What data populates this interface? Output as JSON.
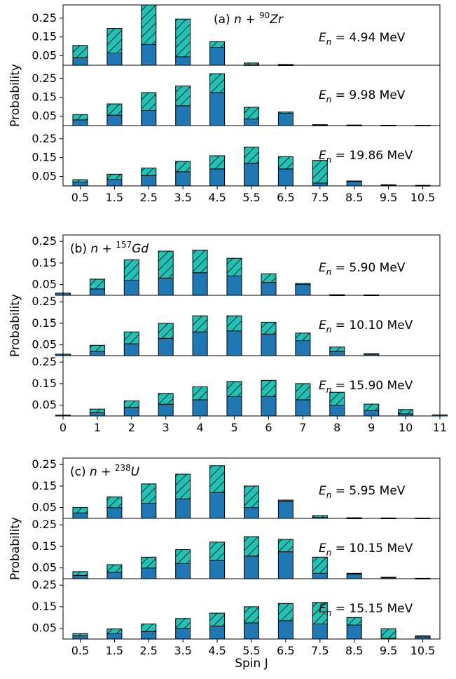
{
  "colors": {
    "solid": "#1f77b4",
    "hatch_bg": "#20c2b6",
    "edge": "#000000"
  },
  "chart_data": [
    {
      "type": "bar",
      "stacked": true,
      "title": "",
      "panel_label": "(a) n + ⁹⁰Zr",
      "ylabel": "Probability",
      "xlabel": "",
      "x_ticks": [
        "0.5",
        "1.5",
        "2.5",
        "3.5",
        "4.5",
        "5.5",
        "6.5",
        "7.5",
        "8.5",
        "9.5",
        "10.5"
      ],
      "xlim": [
        0,
        11
      ],
      "y_ticks": [
        "0.25",
        "0.15",
        "0.05"
      ],
      "subplots": [
        {
          "energy": "Eₙ = 4.94 MeV",
          "ylim": [
            0,
            0.32
          ],
          "x": [
            0.5,
            1.5,
            2.5,
            3.5,
            4.5,
            5.5,
            6.5,
            7.5,
            8.5,
            9.5,
            10.5
          ],
          "series": [
            {
              "style": "solid",
              "values": [
                0.04,
                0.065,
                0.11,
                0.045,
                0.095,
                0.002,
                0.001,
                0,
                0,
                0,
                0
              ]
            },
            {
              "style": "hatched",
              "values": [
                0.065,
                0.13,
                0.21,
                0.2,
                0.03,
                0.01,
                0.003,
                0,
                0,
                0,
                0
              ]
            }
          ]
        },
        {
          "energy": "Eₙ = 9.98 MeV",
          "ylim": [
            0,
            0.32
          ],
          "x": [
            0.5,
            1.5,
            2.5,
            3.5,
            4.5,
            5.5,
            6.5,
            7.5,
            8.5,
            9.5,
            10.5
          ],
          "series": [
            {
              "style": "solid",
              "values": [
                0.03,
                0.055,
                0.08,
                0.105,
                0.175,
                0.035,
                0.065,
                0.002,
                0.001,
                0.001,
                0
              ]
            },
            {
              "style": "hatched",
              "values": [
                0.028,
                0.06,
                0.095,
                0.105,
                0.1,
                0.062,
                0.007,
                0.003,
                0.002,
                0.001,
                0.002
              ]
            }
          ]
        },
        {
          "energy": "Eₙ = 19.86 MeV",
          "ylim": [
            0,
            0.32
          ],
          "x": [
            0.5,
            1.5,
            2.5,
            3.5,
            4.5,
            5.5,
            6.5,
            7.5,
            8.5,
            9.5,
            10.5
          ],
          "series": [
            {
              "style": "solid",
              "values": [
                0.02,
                0.035,
                0.055,
                0.075,
                0.09,
                0.12,
                0.09,
                0.015,
                0.025,
                0.005,
                0.002
              ]
            },
            {
              "style": "hatched",
              "values": [
                0.013,
                0.027,
                0.04,
                0.055,
                0.07,
                0.085,
                0.065,
                0.12,
                0.001,
                0.001,
                0.001
              ]
            }
          ]
        }
      ]
    },
    {
      "type": "bar",
      "stacked": true,
      "title": "",
      "panel_label": "(b) n + ¹⁵⁷Gd",
      "ylabel": "Probability",
      "xlabel": "",
      "x_ticks": [
        "0",
        "1",
        "2",
        "3",
        "4",
        "5",
        "6",
        "7",
        "8",
        "9",
        "10",
        "11"
      ],
      "xlim": [
        0,
        11
      ],
      "y_ticks": [
        "0.25",
        "0.15",
        "0.05"
      ],
      "subplots": [
        {
          "energy": "Eₙ = 5.90 MeV",
          "ylim": [
            0,
            0.28
          ],
          "x": [
            0,
            1,
            2,
            3,
            4,
            5,
            6,
            7,
            8,
            9,
            10,
            11
          ],
          "series": [
            {
              "style": "solid",
              "values": [
                0.01,
                0.03,
                0.07,
                0.08,
                0.105,
                0.09,
                0.06,
                0.05,
                0.001,
                0.001,
                0,
                0
              ]
            },
            {
              "style": "hatched",
              "values": [
                0,
                0.045,
                0.095,
                0.125,
                0.105,
                0.082,
                0.04,
                0.005,
                0.002,
                0.001,
                0,
                0
              ]
            }
          ]
        },
        {
          "energy": "Eₙ = 10.10 MeV",
          "ylim": [
            0,
            0.28
          ],
          "x": [
            0,
            1,
            2,
            3,
            4,
            5,
            6,
            7,
            8,
            9,
            10,
            11
          ],
          "series": [
            {
              "style": "solid",
              "values": [
                0.007,
                0.02,
                0.055,
                0.08,
                0.11,
                0.115,
                0.1,
                0.07,
                0.02,
                0.007,
                0,
                0
              ]
            },
            {
              "style": "hatched",
              "values": [
                0,
                0.028,
                0.055,
                0.07,
                0.075,
                0.07,
                0.055,
                0.035,
                0.02,
                0.002,
                0,
                0
              ]
            }
          ]
        },
        {
          "energy": "Eₙ = 15.90 MeV",
          "ylim": [
            0,
            0.28
          ],
          "x": [
            0,
            1,
            2,
            3,
            4,
            5,
            6,
            7,
            8,
            9,
            10,
            11
          ],
          "series": [
            {
              "style": "solid",
              "values": [
                0.004,
                0.015,
                0.04,
                0.055,
                0.075,
                0.09,
                0.09,
                0.075,
                0.05,
                0.025,
                0.01,
                0.005
              ]
            },
            {
              "style": "hatched",
              "values": [
                0,
                0.017,
                0.03,
                0.05,
                0.06,
                0.07,
                0.075,
                0.075,
                0.06,
                0.03,
                0.02,
                0
              ]
            }
          ]
        }
      ]
    },
    {
      "type": "bar",
      "stacked": true,
      "title": "",
      "panel_label": "(c) n + ²³⁸U",
      "ylabel": "Probability",
      "xlabel": "Spin J",
      "x_ticks": [
        "0.5",
        "1.5",
        "2.5",
        "3.5",
        "4.5",
        "5.5",
        "6.5",
        "7.5",
        "8.5",
        "9.5",
        "10.5"
      ],
      "xlim": [
        0,
        11
      ],
      "y_ticks": [
        "0.25",
        "0.15",
        "0.05"
      ],
      "subplots": [
        {
          "energy": "Eₙ = 5.95 MeV",
          "ylim": [
            0,
            0.28
          ],
          "x": [
            0.5,
            1.5,
            2.5,
            3.5,
            4.5,
            5.5,
            6.5,
            7.5,
            8.5,
            9.5,
            10.5
          ],
          "series": [
            {
              "style": "solid",
              "values": [
                0.025,
                0.05,
                0.07,
                0.09,
                0.12,
                0.05,
                0.08,
                0.005,
                0.001,
                0.001,
                0
              ]
            },
            {
              "style": "hatched",
              "values": [
                0.025,
                0.05,
                0.09,
                0.115,
                0.125,
                0.1,
                0.005,
                0.008,
                0.002,
                0.001,
                0.001
              ]
            }
          ]
        },
        {
          "energy": "Eₙ = 10.15 MeV",
          "ylim": [
            0,
            0.28
          ],
          "x": [
            0.5,
            1.5,
            2.5,
            3.5,
            4.5,
            5.5,
            6.5,
            7.5,
            8.5,
            9.5,
            10.5
          ],
          "series": [
            {
              "style": "solid",
              "values": [
                0.015,
                0.03,
                0.05,
                0.07,
                0.085,
                0.105,
                0.125,
                0.025,
                0.022,
                0.005,
                0.001
              ]
            },
            {
              "style": "hatched",
              "values": [
                0.018,
                0.035,
                0.05,
                0.065,
                0.085,
                0.09,
                0.058,
                0.075,
                0.003,
                0.002,
                0.001
              ]
            }
          ]
        },
        {
          "energy": "Eₙ = 15.15 MeV",
          "ylim": [
            0,
            0.28
          ],
          "x": [
            0.5,
            1.5,
            2.5,
            3.5,
            4.5,
            5.5,
            6.5,
            7.5,
            8.5,
            9.5,
            10.5
          ],
          "series": [
            {
              "style": "solid",
              "values": [
                0.015,
                0.025,
                0.035,
                0.05,
                0.06,
                0.075,
                0.085,
                0.07,
                0.065,
                0.003,
                0.01
              ]
            },
            {
              "style": "hatched",
              "values": [
                0.01,
                0.022,
                0.035,
                0.045,
                0.06,
                0.075,
                0.08,
                0.1,
                0.035,
                0.045,
                0.005
              ]
            }
          ]
        }
      ]
    }
  ]
}
